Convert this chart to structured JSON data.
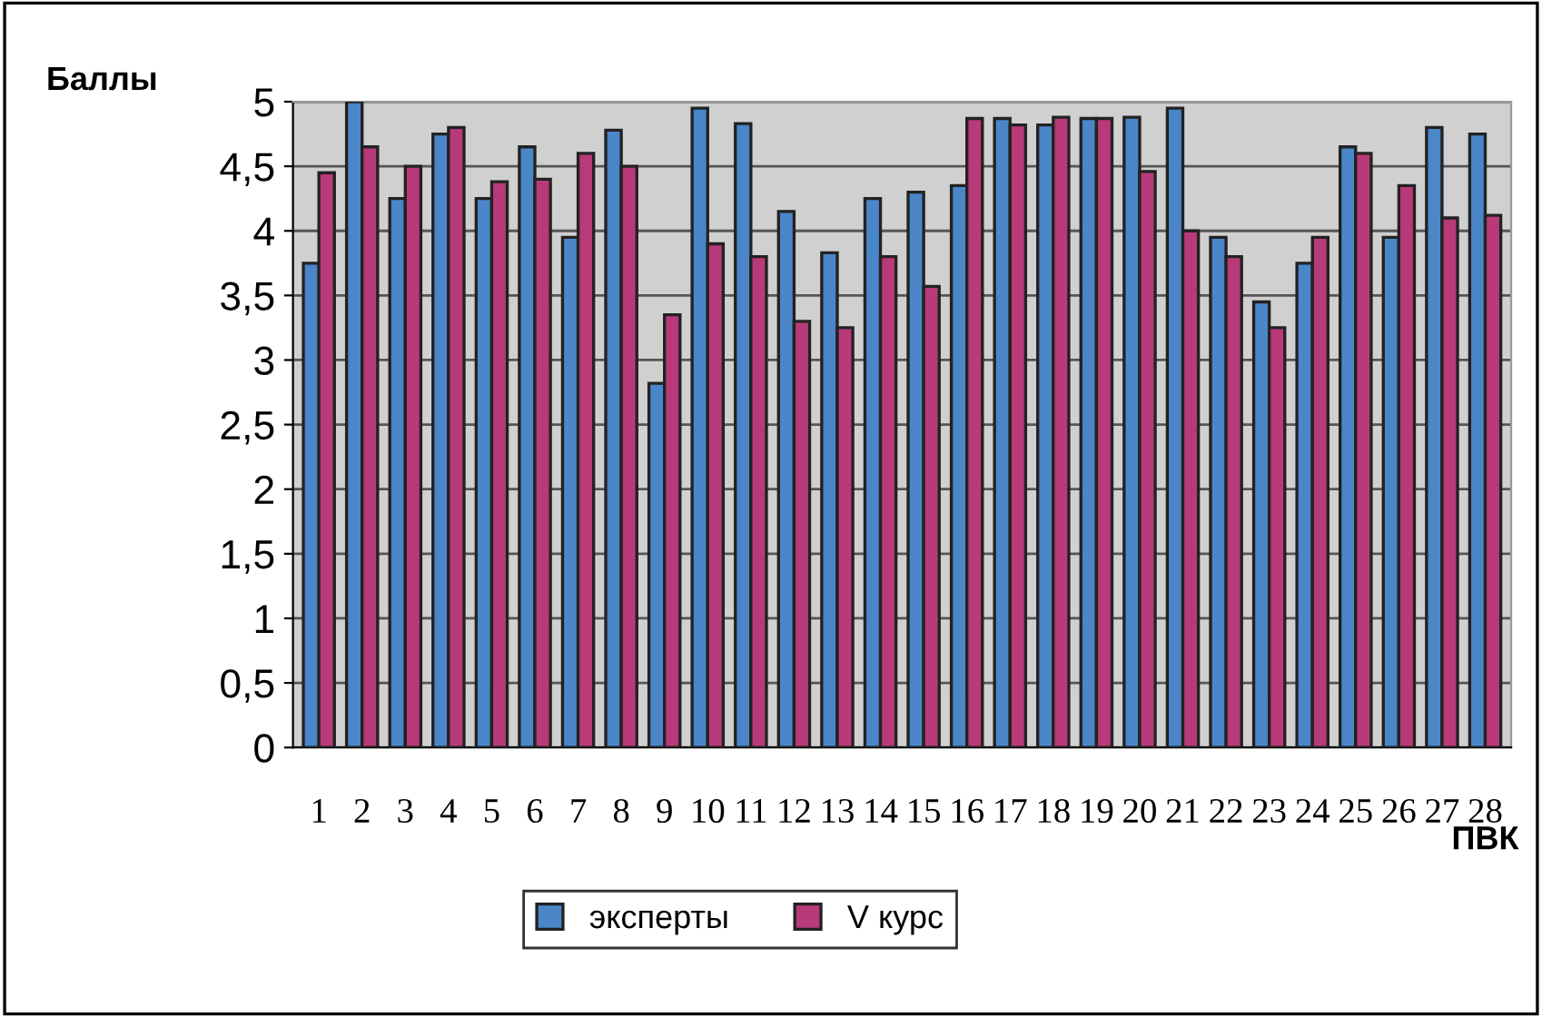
{
  "chart_data": {
    "type": "bar",
    "ylabel": "Баллы",
    "xlabel": "ПВК",
    "categories": [
      "1",
      "2",
      "3",
      "4",
      "5",
      "6",
      "7",
      "8",
      "9",
      "10",
      "11",
      "12",
      "13",
      "14",
      "15",
      "16",
      "17",
      "18",
      "19",
      "20",
      "21",
      "22",
      "23",
      "24",
      "25",
      "26",
      "27",
      "28"
    ],
    "series": [
      {
        "name": "эксперты",
        "color": "#4a86c8",
        "values": [
          3.75,
          5.0,
          4.25,
          4.75,
          4.25,
          4.65,
          3.95,
          4.78,
          2.82,
          4.95,
          4.83,
          4.15,
          3.83,
          4.25,
          4.3,
          4.35,
          4.87,
          4.82,
          4.87,
          4.88,
          4.95,
          3.95,
          3.45,
          3.75,
          4.65,
          3.95,
          4.8,
          4.75
        ]
      },
      {
        "name": "V курс",
        "color": "#b83a78",
        "values": [
          4.45,
          4.65,
          4.5,
          4.8,
          4.38,
          4.4,
          4.6,
          4.5,
          3.35,
          3.9,
          3.8,
          3.3,
          3.25,
          3.8,
          3.57,
          4.87,
          4.82,
          4.88,
          4.87,
          4.46,
          4.0,
          3.8,
          3.25,
          3.95,
          4.6,
          4.35,
          4.1,
          4.12
        ]
      }
    ],
    "ylim": [
      0,
      5
    ],
    "yticks": [
      {
        "value": 0,
        "label": "0"
      },
      {
        "value": 0.5,
        "label": "0,5"
      },
      {
        "value": 1,
        "label": "1"
      },
      {
        "value": 1.5,
        "label": "1,5"
      },
      {
        "value": 2,
        "label": "2"
      },
      {
        "value": 2.5,
        "label": "2,5"
      },
      {
        "value": 3,
        "label": "3"
      },
      {
        "value": 3.5,
        "label": "3,5"
      },
      {
        "value": 4,
        "label": "4"
      },
      {
        "value": 4.5,
        "label": "4,5"
      },
      {
        "value": 5,
        "label": "5"
      }
    ],
    "grid": "y",
    "legend": "bottom"
  }
}
